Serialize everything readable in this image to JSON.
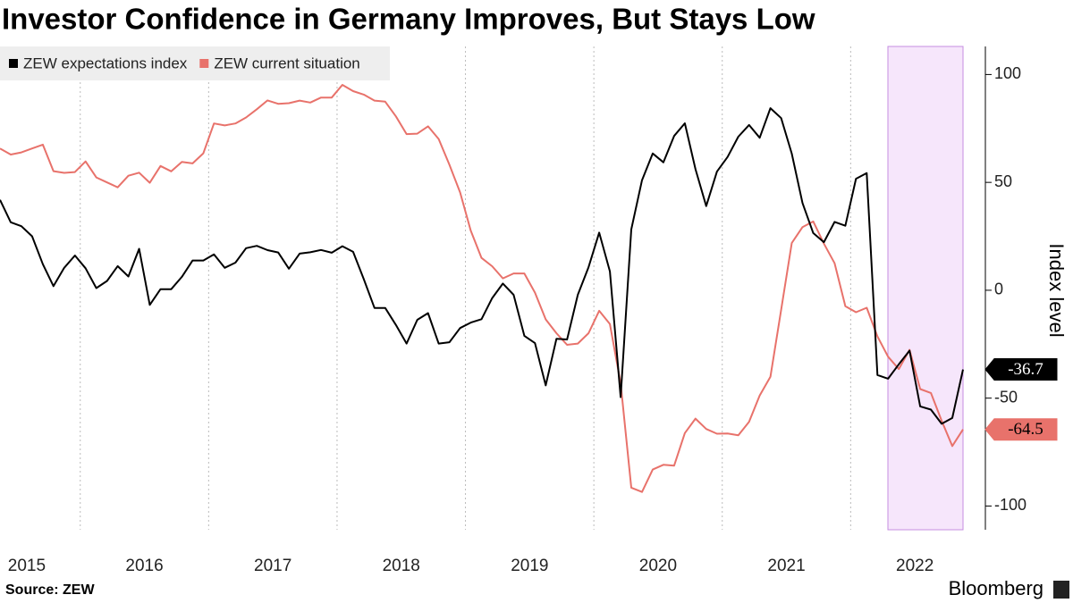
{
  "chart_data": {
    "type": "line",
    "title": "Investor Confidence in Germany Improves, But Stays Low",
    "y_axis_label": "Index level",
    "source": "Source: ZEW",
    "brand": "Bloomberg",
    "categories": [
      null,
      null,
      null,
      "2015",
      null,
      null,
      null,
      null,
      null,
      null,
      null,
      null,
      null,
      null,
      "2016",
      null,
      null,
      null,
      null,
      null,
      null,
      null,
      null,
      null,
      null,
      null,
      "2017",
      null,
      null,
      null,
      null,
      null,
      null,
      null,
      null,
      null,
      null,
      null,
      "2018",
      null,
      null,
      null,
      null,
      null,
      null,
      null,
      null,
      null,
      null,
      null,
      "2019",
      null,
      null,
      null,
      null,
      null,
      null,
      null,
      null,
      null,
      null,
      null,
      "2020",
      null,
      null,
      null,
      null,
      null,
      null,
      null,
      null,
      null,
      null,
      null,
      "2021",
      null,
      null,
      null,
      null,
      null,
      null,
      null,
      null,
      null,
      null,
      null,
      "2022",
      null,
      null,
      null,
      null
    ],
    "series": [
      {
        "name": "ZEW expectations index",
        "color": "#000000",
        "values": [
          41.9,
          31.5,
          29.7,
          25.0,
          12.1,
          1.9,
          10.4,
          16.1,
          10.2,
          1.0,
          4.3,
          11.2,
          6.4,
          19.2,
          -6.8,
          0.5,
          0.5,
          6.2,
          13.8,
          13.8,
          16.6,
          10.4,
          12.8,
          19.5,
          20.6,
          18.6,
          17.5,
          10.0,
          17.0,
          17.6,
          18.7,
          17.4,
          20.4,
          17.8,
          5.1,
          -8.2,
          -8.2,
          -16.1,
          -24.7,
          -13.7,
          -10.6,
          -24.7,
          -24.1,
          -17.5,
          -15.0,
          -13.4,
          -3.6,
          3.1,
          -2.1,
          -21.1,
          -24.5,
          -44.1,
          -22.5,
          -22.8,
          -2.1,
          10.7,
          26.7,
          8.7,
          -49.5,
          28.2,
          51.0,
          63.4,
          59.3,
          71.5,
          77.4,
          56.1,
          39.0,
          55.0,
          61.8,
          71.2,
          76.6,
          70.7,
          84.4,
          79.8,
          63.3,
          40.4,
          26.5,
          22.3,
          31.7,
          29.9,
          51.7,
          54.3,
          -39.3,
          -41.0,
          -34.3,
          -28.0,
          -53.8,
          -55.3,
          -61.9,
          -59.2,
          -36.7
        ]
      },
      {
        "name": "ZEW current situation",
        "color": "#e8726b",
        "values": [
          65.7,
          62.9,
          63.9,
          65.7,
          67.5,
          55.2,
          54.4,
          54.8,
          59.7,
          52.3,
          50.0,
          47.7,
          53.1,
          54.5,
          49.8,
          57.6,
          55.1,
          59.5,
          58.8,
          63.5,
          77.3,
          76.4,
          77.3,
          80.1,
          83.9,
          88.0,
          86.4,
          86.7,
          87.9,
          87.0,
          89.3,
          89.3,
          95.2,
          92.3,
          90.7,
          87.9,
          87.4,
          80.6,
          72.4,
          72.6,
          76.0,
          70.1,
          58.2,
          45.3,
          27.6,
          15.0,
          11.1,
          5.5,
          7.8,
          7.8,
          -1.1,
          -13.5,
          -19.9,
          -25.3,
          -24.7,
          -19.9,
          -9.5,
          -15.7,
          -43.1,
          -91.5,
          -93.5,
          -83.1,
          -80.9,
          -81.3,
          -66.2,
          -59.5,
          -64.3,
          -66.5,
          -66.4,
          -67.2,
          -61.0,
          -48.8,
          -40.1,
          -9.1,
          21.9,
          29.3,
          31.9,
          21.6,
          12.5,
          -7.4,
          -10.2,
          -8.1,
          -21.4,
          -30.8,
          -36.5,
          -27.6,
          -45.8,
          -47.6,
          -60.5,
          -72.2,
          -64.5
        ]
      }
    ],
    "ylim": [
      -111,
      113
    ],
    "yticks": [
      100,
      50,
      0,
      -50,
      -100
    ],
    "y_axis_side": "right",
    "legend": "top-left"
  }
}
